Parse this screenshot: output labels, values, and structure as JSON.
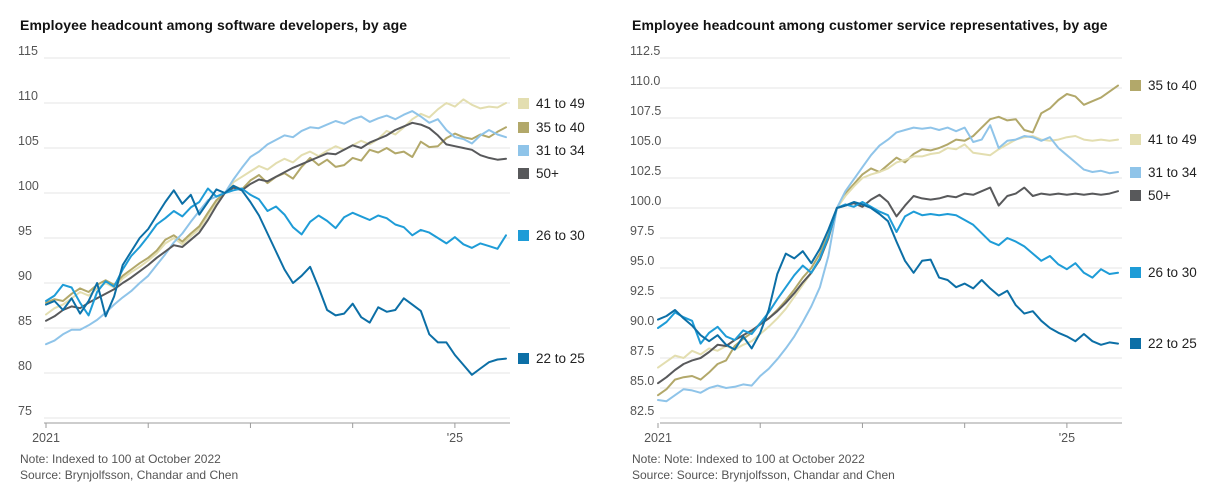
{
  "page": {
    "background": "#ffffff",
    "gridline_color": "#e6e6e6",
    "axis_color": "#9b9b9b",
    "tick_label_color": "#555555",
    "title_color": "#121212",
    "note_color": "#555555"
  },
  "chart_data": [
    {
      "type": "line",
      "title": "Employee headcount among software developers, by age",
      "note": "Note: Indexed to 100 at October 2022",
      "source": "Source: Brynjolfsson, Chandar and Chen",
      "grid": true,
      "legend_position": "right",
      "x_axis": {
        "ticks": [
          {
            "month": 0,
            "label": "2021"
          },
          {
            "month": 12,
            "label": ""
          },
          {
            "month": 24,
            "label": ""
          },
          {
            "month": 36,
            "label": ""
          },
          {
            "month": 48,
            "label": "'25"
          }
        ]
      },
      "y_axis": {
        "min": 75,
        "max": 115,
        "step": 5,
        "decimals": 0
      },
      "series": [
        {
          "name": "41 to 49",
          "color": "#e3deb0",
          "values": [
            86.5,
            87.2,
            87.6,
            88.3,
            89.0,
            88.6,
            89.4,
            90.0,
            89.5,
            90.5,
            91.2,
            91.8,
            92.5,
            93.3,
            94.4,
            95.0,
            94.3,
            95.2,
            96.0,
            97.5,
            99.0,
            100.0,
            101.2,
            101.8,
            102.4,
            103.0,
            102.6,
            103.3,
            103.8,
            103.4,
            104.2,
            104.6,
            104.1,
            104.7,
            105.2,
            104.8,
            105.3,
            105.8,
            105.4,
            106.0,
            106.9,
            106.5,
            107.3,
            108.2,
            108.8,
            108.4,
            109.3,
            110.0,
            109.6,
            110.4,
            109.8,
            109.4,
            109.6,
            109.5,
            110.0
          ]
        },
        {
          "name": "35 to 40",
          "color": "#b2a86a",
          "values": [
            87.8,
            88.2,
            88.0,
            88.8,
            89.4,
            89.0,
            89.8,
            90.3,
            89.8,
            90.8,
            91.5,
            92.2,
            92.8,
            93.6,
            94.8,
            95.3,
            94.6,
            95.5,
            96.3,
            97.8,
            99.2,
            100.0,
            100.8,
            100.4,
            101.4,
            102.0,
            101.1,
            101.8,
            102.2,
            101.6,
            102.9,
            103.9,
            103.1,
            103.7,
            102.9,
            103.1,
            103.9,
            103.6,
            104.8,
            104.5,
            105.0,
            104.4,
            104.6,
            104.0,
            105.7,
            105.1,
            105.2,
            106.1,
            106.6,
            106.2,
            106.0,
            106.5,
            106.2,
            106.8,
            107.3
          ]
        },
        {
          "name": "31 to 34",
          "color": "#8fc4e9",
          "values": [
            83.2,
            83.6,
            84.3,
            84.8,
            84.8,
            85.3,
            85.9,
            86.7,
            87.6,
            88.4,
            89.1,
            90.0,
            90.8,
            92.0,
            93.2,
            94.5,
            95.5,
            96.8,
            98.0,
            99.2,
            99.6,
            100.0,
            101.5,
            102.8,
            104.0,
            104.6,
            105.4,
            105.9,
            106.4,
            106.2,
            106.9,
            107.3,
            107.2,
            107.6,
            108.0,
            107.7,
            108.2,
            108.5,
            107.9,
            108.3,
            108.6,
            108.2,
            108.7,
            109.1,
            108.5,
            107.8,
            108.2,
            107.0,
            106.2,
            106.0,
            105.5,
            106.4,
            107.0,
            106.5,
            106.2
          ]
        },
        {
          "name": "50+",
          "color": "#58595b",
          "values": [
            85.8,
            86.3,
            87.0,
            87.4,
            87.2,
            87.8,
            88.3,
            88.8,
            89.3,
            90.0,
            90.6,
            91.3,
            92.0,
            92.8,
            93.5,
            94.2,
            94.0,
            94.8,
            95.6,
            97.0,
            98.6,
            100.0,
            100.6,
            100.3,
            101.0,
            101.5,
            101.3,
            101.8,
            102.3,
            102.8,
            103.2,
            103.6,
            104.0,
            104.4,
            104.3,
            104.8,
            105.3,
            105.0,
            105.6,
            106.0,
            106.4,
            107.0,
            107.4,
            107.8,
            107.6,
            107.2,
            106.4,
            105.4,
            105.2,
            105.0,
            104.8,
            104.2,
            103.9,
            103.7,
            103.8
          ]
        },
        {
          "name": "26 to 30",
          "color": "#1e9cd7",
          "values": [
            88.0,
            88.6,
            89.8,
            89.5,
            87.8,
            86.4,
            89.0,
            90.2,
            89.6,
            91.5,
            93.0,
            94.0,
            95.2,
            96.5,
            97.2,
            98.0,
            97.4,
            98.4,
            99.0,
            100.5,
            99.6,
            100.0,
            100.3,
            100.5,
            99.8,
            99.3,
            98.0,
            98.5,
            97.6,
            96.2,
            95.4,
            96.8,
            97.5,
            96.9,
            96.1,
            97.3,
            97.8,
            97.4,
            97.0,
            97.5,
            97.2,
            96.5,
            96.2,
            95.3,
            95.9,
            95.6,
            95.0,
            94.4,
            95.1,
            94.3,
            93.9,
            94.4,
            94.1,
            93.8,
            95.3
          ]
        },
        {
          "name": "22 to 25",
          "color": "#0c6fa6",
          "values": [
            87.6,
            88.0,
            87.0,
            88.3,
            86.6,
            88.0,
            90.0,
            86.3,
            88.5,
            92.0,
            93.5,
            95.0,
            96.0,
            97.5,
            99.0,
            100.3,
            98.8,
            99.8,
            97.6,
            99.0,
            100.4,
            100.0,
            100.8,
            100.3,
            99.0,
            97.5,
            95.5,
            93.5,
            91.5,
            90.0,
            90.8,
            91.8,
            89.5,
            87.0,
            86.4,
            86.6,
            87.7,
            86.2,
            85.6,
            87.3,
            86.8,
            87.0,
            88.3,
            87.6,
            86.9,
            84.3,
            83.4,
            83.4,
            82.0,
            80.9,
            79.8,
            80.5,
            81.2,
            81.5,
            81.6
          ]
        }
      ]
    },
    {
      "type": "line",
      "title": "Employee headcount among customer service representatives, by age",
      "note": "Note: Note: Indexed to 100 at October 2022",
      "source": "Source: Source: Brynjolfsson, Chandar and Chen",
      "grid": true,
      "legend_position": "right",
      "x_axis": {
        "ticks": [
          {
            "month": 0,
            "label": "2021"
          },
          {
            "month": 12,
            "label": ""
          },
          {
            "month": 24,
            "label": ""
          },
          {
            "month": 36,
            "label": ""
          },
          {
            "month": 48,
            "label": "'25"
          }
        ]
      },
      "y_axis": {
        "min": 82.5,
        "max": 112.5,
        "step": 2.5,
        "decimals": 1
      },
      "series": [
        {
          "name": "35 to 40",
          "color": "#b2a86a",
          "values": [
            84.4,
            84.9,
            85.7,
            85.9,
            86.0,
            85.7,
            86.3,
            87.0,
            87.3,
            88.5,
            89.1,
            89.6,
            90.4,
            90.8,
            91.5,
            92.3,
            93.2,
            94.2,
            95.0,
            96.2,
            97.8,
            100.0,
            101.2,
            102.0,
            102.8,
            103.3,
            103.0,
            103.6,
            104.2,
            103.8,
            104.5,
            104.9,
            104.8,
            105.0,
            105.3,
            105.7,
            105.6,
            106.0,
            106.7,
            107.4,
            107.6,
            107.3,
            107.4,
            106.5,
            106.3,
            107.9,
            108.3,
            109.0,
            109.5,
            109.3,
            108.6,
            108.9,
            109.2,
            109.7,
            110.2
          ]
        },
        {
          "name": "41 to 49",
          "color": "#e3deb0",
          "values": [
            86.7,
            87.2,
            87.7,
            87.5,
            88.1,
            87.8,
            88.3,
            88.1,
            88.5,
            88.2,
            88.6,
            88.9,
            89.5,
            90.1,
            90.8,
            91.6,
            92.6,
            93.6,
            94.6,
            95.8,
            97.4,
            100.0,
            101.0,
            101.8,
            102.5,
            102.8,
            103.0,
            103.3,
            103.8,
            104.0,
            104.3,
            104.3,
            104.5,
            104.6,
            105.0,
            104.9,
            105.3,
            104.6,
            104.5,
            104.4,
            104.9,
            105.3,
            105.7,
            105.9,
            106.0,
            105.7,
            105.6,
            105.7,
            105.9,
            106.0,
            105.7,
            105.6,
            105.7,
            105.6,
            105.7
          ]
        },
        {
          "name": "31 to 34",
          "color": "#8fc4e9",
          "values": [
            84.0,
            83.9,
            84.4,
            84.9,
            84.8,
            84.6,
            85.0,
            85.2,
            85.0,
            85.1,
            85.3,
            85.2,
            86.0,
            86.6,
            87.4,
            88.3,
            89.3,
            90.5,
            91.8,
            93.4,
            96.0,
            100.0,
            101.4,
            102.4,
            103.4,
            104.4,
            105.2,
            105.7,
            106.3,
            106.5,
            106.7,
            106.6,
            106.7,
            106.5,
            106.7,
            106.4,
            106.7,
            105.5,
            105.7,
            106.9,
            105.0,
            105.6,
            105.7,
            106.0,
            105.9,
            105.6,
            105.9,
            105.0,
            104.4,
            103.8,
            103.2,
            103.0,
            103.1,
            102.9,
            103.0
          ]
        },
        {
          "name": "50+",
          "color": "#58595b",
          "values": [
            85.4,
            85.9,
            86.5,
            87.0,
            87.3,
            87.5,
            88.0,
            88.6,
            88.5,
            89.0,
            89.4,
            89.8,
            90.3,
            90.8,
            91.4,
            92.1,
            92.9,
            93.8,
            94.6,
            95.7,
            97.5,
            100.0,
            100.2,
            100.4,
            100.1,
            100.7,
            101.1,
            100.5,
            99.3,
            100.2,
            101.0,
            100.8,
            100.7,
            100.8,
            101.0,
            100.9,
            101.2,
            101.1,
            101.4,
            101.7,
            100.2,
            101.0,
            101.2,
            101.7,
            101.0,
            101.2,
            101.1,
            101.2,
            101.1,
            101.2,
            101.1,
            101.2,
            101.1,
            101.2,
            101.4
          ]
        },
        {
          "name": "26 to 30",
          "color": "#1e9cd7",
          "values": [
            90.0,
            90.5,
            91.3,
            90.9,
            90.6,
            88.7,
            89.6,
            90.1,
            89.3,
            89.0,
            89.8,
            89.5,
            90.4,
            91.3,
            92.4,
            93.4,
            94.4,
            95.2,
            94.6,
            95.8,
            97.6,
            100.0,
            100.3,
            100.1,
            100.5,
            100.1,
            99.7,
            99.4,
            98.0,
            99.3,
            99.7,
            99.4,
            99.5,
            99.4,
            99.5,
            99.4,
            99.0,
            98.6,
            97.9,
            97.2,
            96.9,
            97.5,
            97.2,
            96.8,
            96.2,
            95.6,
            96.0,
            95.3,
            94.9,
            95.4,
            94.6,
            94.2,
            94.9,
            94.5,
            94.6
          ]
        },
        {
          "name": "22 to 25",
          "color": "#0c6fa6",
          "values": [
            90.7,
            91.0,
            91.5,
            90.8,
            90.2,
            89.4,
            88.9,
            89.4,
            88.6,
            88.2,
            89.3,
            88.3,
            89.6,
            91.5,
            94.5,
            96.2,
            95.8,
            96.4,
            95.4,
            96.6,
            98.2,
            100.0,
            100.2,
            100.5,
            100.3,
            100.0,
            99.5,
            98.9,
            97.2,
            95.6,
            94.6,
            95.6,
            95.7,
            94.2,
            94.0,
            93.4,
            93.7,
            93.3,
            94.0,
            93.3,
            92.7,
            93.1,
            91.9,
            91.2,
            91.4,
            90.6,
            90.0,
            89.6,
            89.3,
            88.9,
            89.5,
            88.9,
            88.6,
            88.8,
            88.7
          ]
        }
      ]
    }
  ]
}
